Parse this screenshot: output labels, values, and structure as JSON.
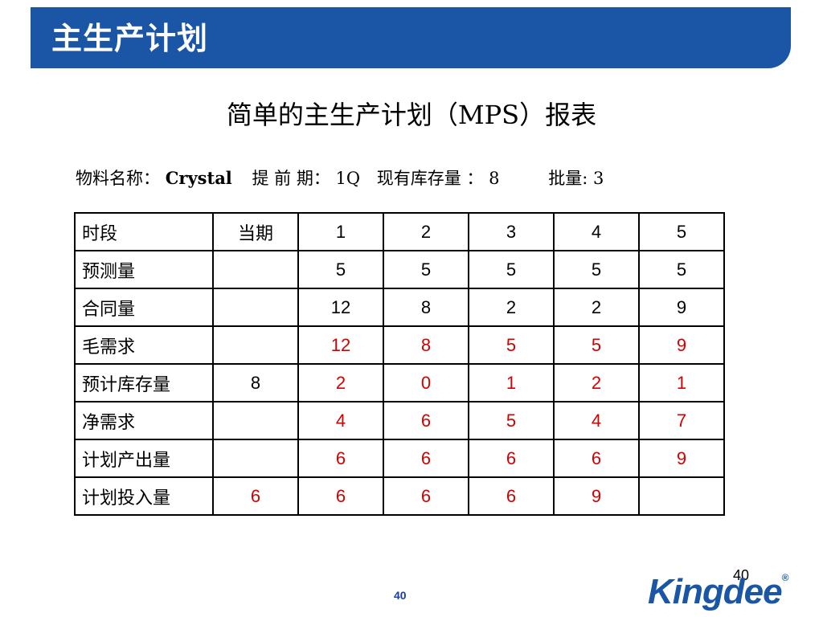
{
  "slide": {
    "title": "主生产计划",
    "heading": "简单的主生产计划（MPS）报表",
    "page_number": "40",
    "logo_text": "Kingdee",
    "logo_mark": "®"
  },
  "info": {
    "material_label": "物料名称：",
    "material_value": "Crystal",
    "lead_time_label": "提 前 期：",
    "lead_time_value": "1Q",
    "on_hand_label": "现有库存量 ：",
    "on_hand_value": "8",
    "lot_label": "批量:",
    "lot_value": "3"
  },
  "table": {
    "header": [
      "时段",
      "当期",
      "1",
      "2",
      "3",
      "4",
      "5"
    ],
    "rows": [
      {
        "label": "预测量",
        "cells": [
          "",
          "5",
          "5",
          "5",
          "5",
          "5"
        ],
        "red": [
          false,
          false,
          false,
          false,
          false,
          false
        ]
      },
      {
        "label": "合同量",
        "cells": [
          "",
          "12",
          "8",
          "2",
          "2",
          "9"
        ],
        "red": [
          false,
          false,
          false,
          false,
          false,
          false
        ]
      },
      {
        "label": "毛需求",
        "cells": [
          "",
          "12",
          "8",
          "5",
          "5",
          "9"
        ],
        "red": [
          false,
          true,
          true,
          true,
          true,
          true
        ]
      },
      {
        "label": "预计库存量",
        "cells": [
          "8",
          "2",
          "0",
          "1",
          "2",
          "1"
        ],
        "red": [
          false,
          true,
          true,
          true,
          true,
          true
        ]
      },
      {
        "label": "净需求",
        "cells": [
          "",
          "4",
          "6",
          "5",
          "4",
          "7"
        ],
        "red": [
          false,
          true,
          true,
          true,
          true,
          true
        ]
      },
      {
        "label": "计划产出量",
        "cells": [
          "",
          "6",
          "6",
          "6",
          "6",
          "9"
        ],
        "red": [
          false,
          true,
          true,
          true,
          true,
          true
        ]
      },
      {
        "label": "计划投入量",
        "cells": [
          "6",
          "6",
          "6",
          "6",
          "9",
          ""
        ],
        "red": [
          true,
          true,
          true,
          true,
          true,
          false
        ]
      }
    ]
  },
  "colors": {
    "banner": "#1a56a5",
    "highlight": "#d40000"
  }
}
